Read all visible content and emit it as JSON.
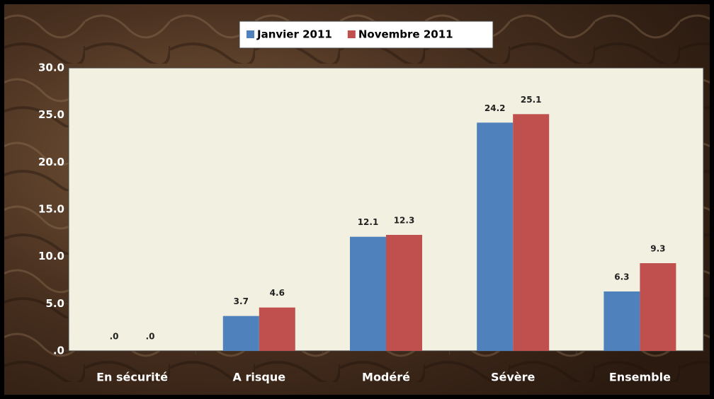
{
  "chart_data": {
    "type": "bar",
    "categories": [
      "En sécurité",
      "A risque",
      "Modéré",
      "Sévère",
      "Ensemble"
    ],
    "series": [
      {
        "name": "Janvier 2011",
        "color": "#4f81bd",
        "values": [
          0,
          3.7,
          12.1,
          24.2,
          6.3
        ],
        "value_labels": [
          ".0",
          "3.7",
          "12.1",
          "24.2",
          "6.3"
        ]
      },
      {
        "name": "Novembre 2011",
        "color": "#c0504d",
        "values": [
          0,
          4.6,
          12.3,
          25.1,
          9.3
        ],
        "value_labels": [
          ".0",
          "4.6",
          "12.3",
          "25.1",
          "9.3"
        ]
      }
    ],
    "ylim": [
      0,
      30
    ],
    "yticks": [
      {
        "value": 0,
        "label": ".0"
      },
      {
        "value": 5,
        "label": "5.0"
      },
      {
        "value": 10,
        "label": "10.0"
      },
      {
        "value": 15,
        "label": "15.0"
      },
      {
        "value": 20,
        "label": "20.0"
      },
      {
        "value": 25,
        "label": "25.0"
      },
      {
        "value": 30,
        "label": "30.0"
      }
    ],
    "legend": "top"
  }
}
